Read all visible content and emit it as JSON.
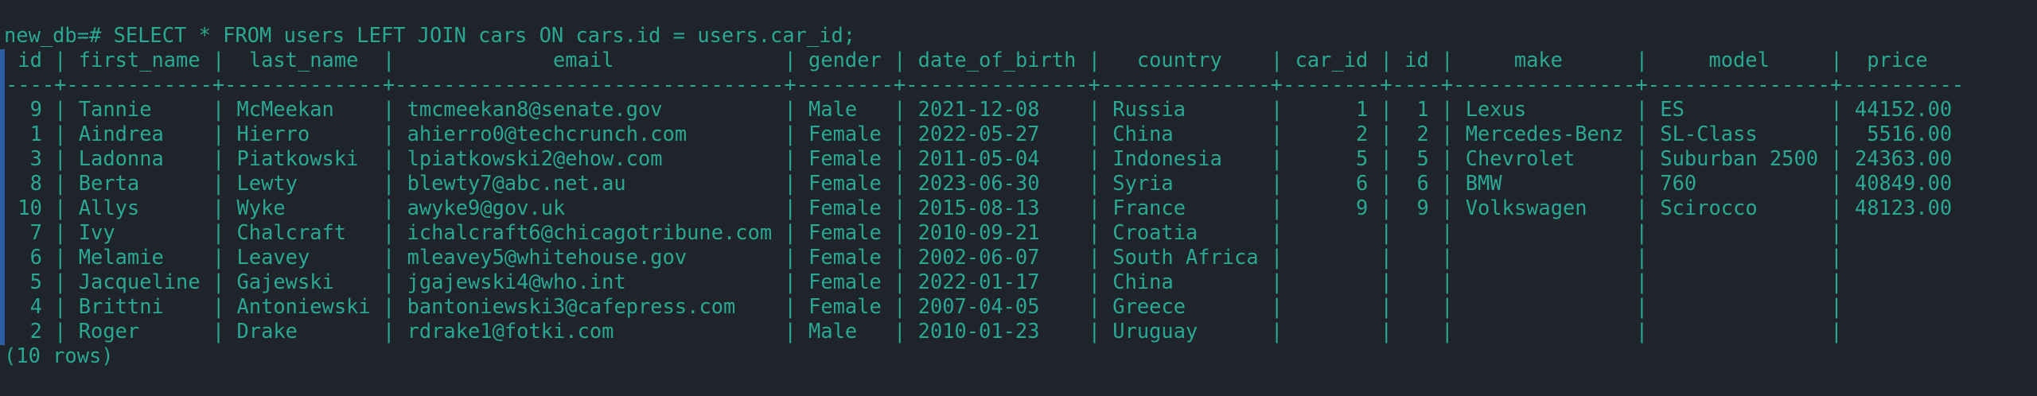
{
  "terminal": {
    "command": "new_db=# SELECT * FROM users LEFT JOIN cars ON cars.id = users.car_id;",
    "table": {
      "headers": [
        "id",
        "first_name",
        "last_name",
        "email",
        "gender",
        "date_of_birth",
        "country",
        "car_id",
        "id",
        "make",
        "model",
        "price"
      ],
      "rows": [
        [
          9,
          "Tannie",
          "McMeekan",
          "tmcmeekan8@senate.gov",
          "Male",
          "2021-12-08",
          "Russia",
          1,
          1,
          "Lexus",
          "ES",
          "44152.00"
        ],
        [
          1,
          "Aindrea",
          "Hierro",
          "ahierro0@techcrunch.com",
          "Female",
          "2022-05-27",
          "China",
          2,
          2,
          "Mercedes-Benz",
          "SL-Class",
          "5516.00"
        ],
        [
          3,
          "Ladonna",
          "Piatkowski",
          "lpiatkowski2@ehow.com",
          "Female",
          "2011-05-04",
          "Indonesia",
          5,
          5,
          "Chevrolet",
          "Suburban 2500",
          "24363.00"
        ],
        [
          8,
          "Berta",
          "Lewty",
          "blewty7@abc.net.au",
          "Female",
          "2023-06-30",
          "Syria",
          6,
          6,
          "BMW",
          "760",
          "40849.00"
        ],
        [
          10,
          "Allys",
          "Wyke",
          "awyke9@gov.uk",
          "Female",
          "2015-08-13",
          "France",
          9,
          9,
          "Volkswagen",
          "Scirocco",
          "48123.00"
        ],
        [
          7,
          "Ivy",
          "Chalcraft",
          "ichalcraft6@chicagotribune.com",
          "Female",
          "2010-09-21",
          "Croatia",
          null,
          null,
          null,
          null,
          null
        ],
        [
          6,
          "Melamie",
          "Leavey",
          "mleavey5@whitehouse.gov",
          "Female",
          "2002-06-07",
          "South Africa",
          null,
          null,
          null,
          null,
          null
        ],
        [
          5,
          "Jacqueline",
          "Gajewski",
          "jgajewski4@who.int",
          "Female",
          "2022-01-17",
          "China",
          null,
          null,
          null,
          null,
          null
        ],
        [
          4,
          "Brittni",
          "Antoniewski",
          "bantoniewski3@cafepress.com",
          "Female",
          "2007-04-05",
          "Greece",
          null,
          null,
          null,
          null,
          null
        ],
        [
          2,
          "Roger",
          "Drake",
          "rdrake1@fotki.com",
          "Male",
          "2010-01-23",
          "Uruguay",
          null,
          null,
          null,
          null,
          null
        ]
      ]
    },
    "footer": "(10 rows)"
  }
}
